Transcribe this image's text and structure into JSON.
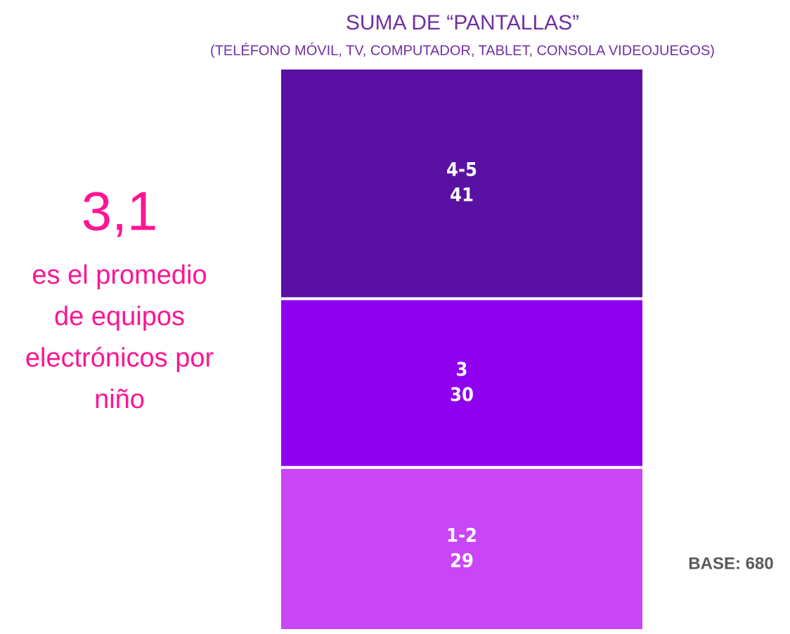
{
  "chart_data": {
    "type": "stacked_bar",
    "title": "SUMA DE “PANTALLAS”",
    "subtitle": "(TELÉFONO MÓVIL, TV, COMPUTADOR, TABLET, CONSOLA VIDEOJUEGOS)",
    "series": [
      {
        "name": "1-2",
        "color": "#c846f5",
        "values": [
          29
        ]
      },
      {
        "name": "3",
        "color": "#8f00ee",
        "values": [
          30
        ]
      },
      {
        "name": "4-5",
        "color": "#5a11a3",
        "values": [
          41
        ]
      }
    ],
    "ylim": [
      0,
      100
    ],
    "annotation": {
      "headline": "3,1",
      "lines": [
        "es el promedio",
        "de equipos",
        "electrónicos por",
        "niño"
      ]
    },
    "note": "BASE: 680"
  }
}
